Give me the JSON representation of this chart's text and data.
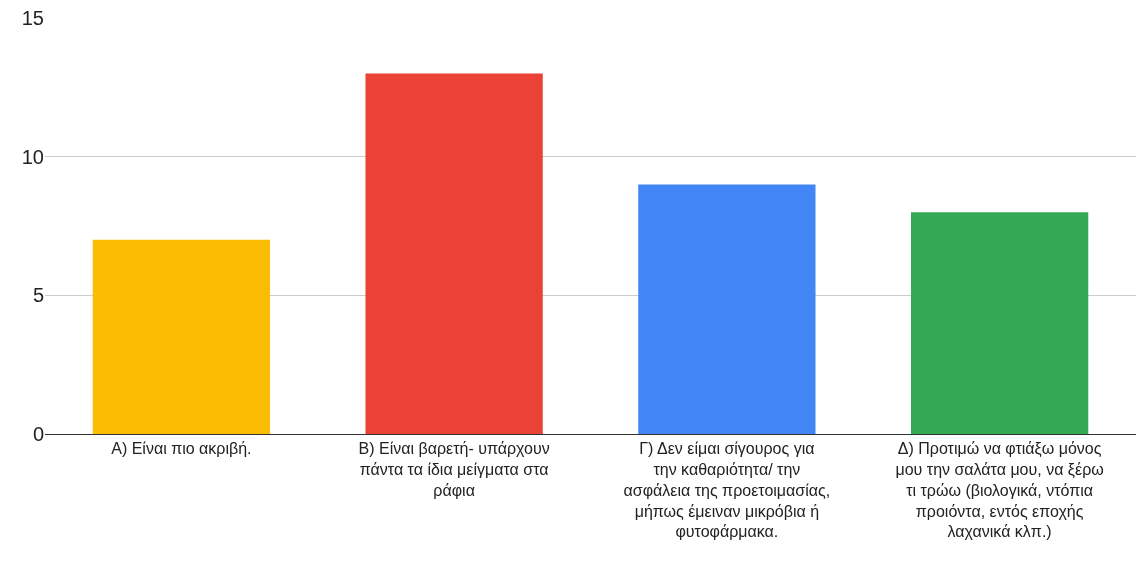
{
  "chart_data": {
    "type": "bar",
    "categories": [
      "Α) Είναι πιο ακριβή.",
      "Β) Είναι βαρετή- υπάρχουν πάντα τα ίδια μείγματα στα ράφια",
      "Γ) Δεν είμαι σίγουρος για την καθαριότητα/ την ασφάλεια της προετοιμασίας, μήπως έμειναν μικρόβια ή φυτοφάρμακα.",
      "Δ) Προτιμώ να φτιάξω μόνος μου την σαλάτα μου, να ξέρω τι τρώω (βιολογικά, ντόπια προιόντα, εντός εποχής λαχανικά κλπ.)"
    ],
    "values": [
      7,
      13,
      9,
      8
    ],
    "colors": [
      "#fbbc04",
      "#ea4335",
      "#4285f4",
      "#34a853"
    ],
    "ylim": [
      0,
      15
    ],
    "yticks": [
      0,
      5,
      10,
      15
    ],
    "grid": "y"
  }
}
